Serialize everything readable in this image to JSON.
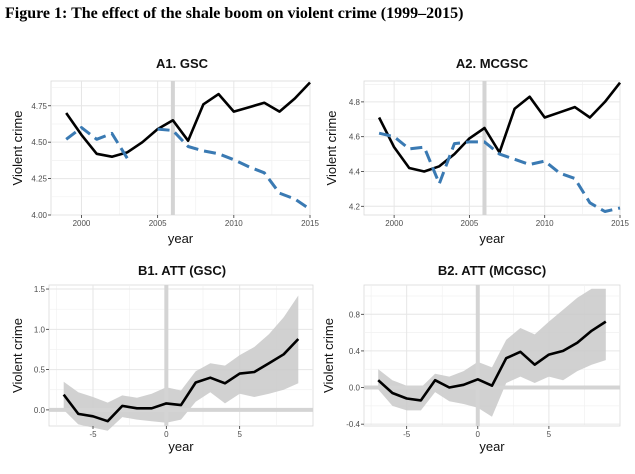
{
  "figure_title": "Figure 1: The effect of the shale boom on violent crime (1999–2015)",
  "colors": {
    "treated": "#000000",
    "synthetic": "#3a7ab3",
    "band": "#c9c9c9",
    "grid": "#e6e6e6",
    "vline": "#d4d4d4"
  },
  "chart_data": [
    {
      "id": "A1",
      "type": "line",
      "title": "A1. GSC",
      "xlabel": "year",
      "ylabel": "Violent crime",
      "xlim": [
        1998,
        2015
      ],
      "ylim": [
        4.0,
        4.92
      ],
      "xticks": [
        2000,
        2005,
        2010,
        2015
      ],
      "xtick_labels": [
        "2000",
        "2005",
        "2010",
        "2015"
      ],
      "yticks": [
        4.0,
        4.25,
        4.5,
        4.75
      ],
      "ytick_labels": [
        "4.00",
        "4.25",
        "4.50",
        "4.75"
      ],
      "vline": 2006,
      "grid": true,
      "x": [
        1999,
        2000,
        2001,
        2002,
        2003,
        2004,
        2005,
        2006,
        2007,
        2008,
        2009,
        2010,
        2011,
        2012,
        2013,
        2014,
        2015
      ],
      "series": [
        {
          "role": "treated",
          "style": "solid",
          "values": [
            4.7,
            4.55,
            4.42,
            4.4,
            4.43,
            4.5,
            4.59,
            4.65,
            4.51,
            4.76,
            4.83,
            4.71,
            4.74,
            4.77,
            4.71,
            4.8,
            4.91
          ]
        },
        {
          "role": "synthetic",
          "style": "dashed",
          "values": [
            4.52,
            4.6,
            4.52,
            4.56,
            4.39,
            null,
            4.59,
            4.58,
            4.47,
            4.44,
            4.42,
            4.38,
            4.33,
            4.29,
            4.15,
            4.11,
            4.04
          ]
        }
      ]
    },
    {
      "id": "A2",
      "type": "line",
      "title": "A2. MCGSC",
      "xlabel": "year",
      "ylabel": "Violent crime",
      "xlim": [
        1998,
        2015
      ],
      "ylim": [
        4.15,
        4.92
      ],
      "xticks": [
        2000,
        2005,
        2010,
        2015
      ],
      "xtick_labels": [
        "2000",
        "2005",
        "2010",
        "2015"
      ],
      "yticks": [
        4.2,
        4.4,
        4.6,
        4.8
      ],
      "ytick_labels": [
        "4.2",
        "4.4",
        "4.6",
        "4.8"
      ],
      "vline": 2006,
      "grid": true,
      "x": [
        1999,
        2000,
        2001,
        2002,
        2003,
        2004,
        2005,
        2006,
        2007,
        2008,
        2009,
        2010,
        2011,
        2012,
        2013,
        2014,
        2015
      ],
      "series": [
        {
          "role": "treated",
          "style": "solid",
          "values": [
            4.71,
            4.54,
            4.42,
            4.4,
            4.43,
            4.5,
            4.59,
            4.65,
            4.51,
            4.76,
            4.83,
            4.71,
            4.74,
            4.77,
            4.71,
            4.8,
            4.91
          ]
        },
        {
          "role": "synthetic",
          "style": "dashed",
          "values": [
            4.62,
            4.6,
            4.53,
            4.54,
            4.33,
            4.56,
            4.57,
            4.57,
            4.5,
            4.47,
            4.44,
            4.46,
            4.39,
            4.36,
            4.22,
            4.17,
            4.19
          ]
        }
      ]
    },
    {
      "id": "B1",
      "type": "line",
      "title": "B1. ATT (GSC)",
      "xlabel": "year",
      "ylabel": "Violent crime",
      "xlim": [
        -8,
        10
      ],
      "ylim": [
        -0.2,
        1.55
      ],
      "xticks": [
        -5,
        0,
        5
      ],
      "xtick_labels": [
        "-5",
        "0",
        "5"
      ],
      "yticks": [
        0.0,
        0.5,
        1.0,
        1.5
      ],
      "ytick_labels": [
        "0.0",
        "0.5",
        "1.0",
        "1.5"
      ],
      "vline": 0,
      "hline": 0,
      "grid": true,
      "x": [
        -7,
        -6,
        -5,
        -4,
        -3,
        -2,
        -1,
        0,
        1,
        2,
        3,
        4,
        5,
        6,
        7,
        8,
        9
      ],
      "series": [
        {
          "role": "att",
          "style": "solid",
          "values": [
            0.19,
            -0.05,
            -0.08,
            -0.14,
            0.05,
            0.02,
            0.02,
            0.08,
            0.06,
            0.34,
            0.4,
            0.33,
            0.45,
            0.47,
            0.58,
            0.69,
            0.88
          ]
        }
      ],
      "ci_upper": [
        0.35,
        0.22,
        0.16,
        0.09,
        0.18,
        0.15,
        0.2,
        0.28,
        0.24,
        0.48,
        0.58,
        0.55,
        0.68,
        0.78,
        0.94,
        1.15,
        1.42
      ],
      "ci_lower": [
        0.0,
        -0.18,
        -0.22,
        -0.26,
        -0.09,
        -0.12,
        -0.14,
        -0.16,
        -0.12,
        0.1,
        0.22,
        0.08,
        0.2,
        0.16,
        0.2,
        0.25,
        0.33
      ]
    },
    {
      "id": "B2",
      "type": "line",
      "title": "B2. ATT (MCGSC)",
      "xlabel": "year",
      "ylabel": "Violent crime",
      "xlim": [
        -8,
        10
      ],
      "ylim": [
        -0.42,
        1.12
      ],
      "xticks": [
        -5,
        0,
        5
      ],
      "xtick_labels": [
        "-5",
        "0",
        "5"
      ],
      "yticks": [
        -0.4,
        0.0,
        0.4,
        0.8
      ],
      "ytick_labels": [
        "-0.4",
        "0.0",
        "0.4",
        "0.8"
      ],
      "vline": 0,
      "hline": 0,
      "grid": true,
      "x": [
        -7,
        -6,
        -5,
        -4,
        -3,
        -2,
        -1,
        0,
        1,
        2,
        3,
        4,
        5,
        6,
        7,
        8,
        9
      ],
      "series": [
        {
          "role": "att",
          "style": "solid",
          "values": [
            0.08,
            -0.06,
            -0.12,
            -0.14,
            0.08,
            0.0,
            0.03,
            0.09,
            0.02,
            0.32,
            0.39,
            0.25,
            0.36,
            0.4,
            0.49,
            0.62,
            0.72
          ]
        }
      ],
      "ci_upper": [
        0.2,
        0.08,
        0.02,
        0.0,
        0.15,
        0.12,
        0.18,
        0.28,
        0.22,
        0.52,
        0.65,
        0.58,
        0.72,
        0.85,
        0.98,
        1.08,
        1.08
      ],
      "ci_lower": [
        -0.02,
        -0.2,
        -0.25,
        -0.25,
        -0.05,
        -0.15,
        -0.18,
        -0.22,
        -0.32,
        0.05,
        0.12,
        0.05,
        0.12,
        0.08,
        0.18,
        0.25,
        0.3
      ]
    }
  ]
}
